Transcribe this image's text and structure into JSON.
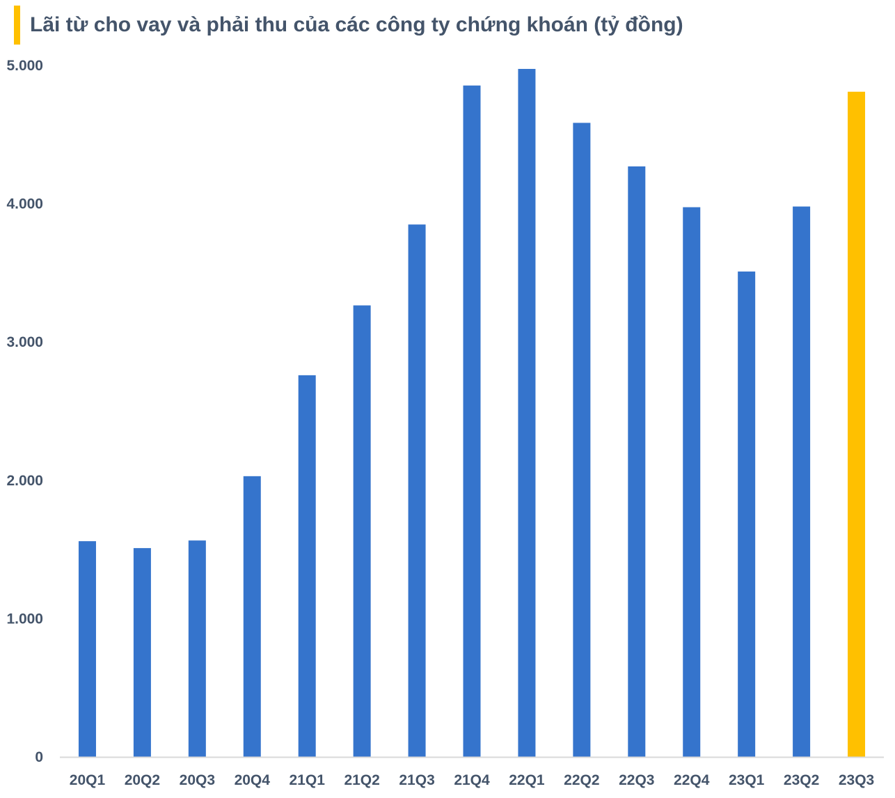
{
  "chart_data": {
    "type": "bar",
    "title": "Lãi từ cho vay và phải thu của các công ty chứng khoán (tỷ đồng)",
    "categories": [
      "20Q1",
      "20Q2",
      "20Q3",
      "20Q4",
      "21Q1",
      "21Q2",
      "21Q3",
      "21Q4",
      "22Q1",
      "22Q2",
      "22Q3",
      "22Q4",
      "23Q1",
      "23Q2",
      "23Q3"
    ],
    "series": [
      {
        "values": [
          1560,
          1510,
          1565,
          2030,
          2760,
          3265,
          3850,
          4855,
          4975,
          4585,
          4270,
          3975,
          3510,
          3980,
          4810
        ]
      }
    ],
    "ylim": [
      0,
      5000
    ],
    "yticks": [
      0,
      1000,
      2000,
      3000,
      4000,
      5000
    ],
    "ytick_labels": [
      "0",
      "1.000",
      "2.000",
      "3.000",
      "4.000",
      "5.000"
    ],
    "xlabel": "",
    "ylabel": "",
    "grid": false,
    "legend": "none",
    "colors": {
      "bar": "#3574cc",
      "highlight": "#ffc000",
      "axis_line": "#d9d9d9",
      "text": "#44546a",
      "title_accent": "#ffc000"
    },
    "highlight_category": "23Q3"
  }
}
